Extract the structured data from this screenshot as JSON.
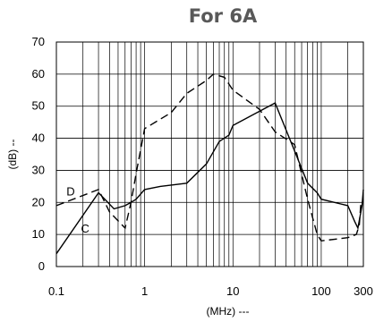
{
  "chart_data": {
    "type": "line",
    "title": "For 6A",
    "xlabel": "(MHz) ---",
    "ylabel": "(dB) --",
    "xscale": "log",
    "xlim": [
      0.1,
      300
    ],
    "ylim": [
      0,
      70
    ],
    "xticks": [
      0.1,
      1,
      10,
      100,
      300
    ],
    "xtick_labels": [
      "0.1",
      "1",
      "10",
      "100",
      "300"
    ],
    "yticks": [
      0,
      10,
      20,
      30,
      40,
      50,
      60,
      70
    ],
    "ytick_labels": [
      "0",
      "10",
      "20",
      "30",
      "40",
      "50",
      "60",
      "70"
    ],
    "grid": true,
    "series": [
      {
        "name": "C",
        "style": "solid",
        "x": [
          0.1,
          0.3,
          0.45,
          0.6,
          0.7,
          0.8,
          1,
          1.5,
          3,
          5,
          7,
          9,
          10,
          30,
          50,
          70,
          90,
          100,
          200,
          240,
          260,
          290,
          300
        ],
        "y": [
          4,
          23,
          18,
          19,
          20,
          21,
          24,
          25,
          26,
          32,
          39,
          41,
          44,
          51,
          36,
          26,
          23,
          21,
          19,
          14,
          12,
          19,
          24
        ]
      },
      {
        "name": "D",
        "style": "dashed",
        "x": [
          0.1,
          0.3,
          0.4,
          0.6,
          0.7,
          0.8,
          1,
          2,
          3,
          5,
          6,
          8,
          10,
          20,
          30,
          50,
          70,
          90,
          100,
          200,
          250,
          270,
          280,
          300
        ],
        "y": [
          19,
          24,
          17,
          12,
          20,
          29,
          43,
          48,
          54,
          58,
          60,
          59,
          55,
          49,
          42,
          38,
          21,
          10,
          8,
          9,
          10,
          13,
          19,
          21
        ]
      }
    ]
  },
  "colors": {
    "background": "#ffffff",
    "grid": "#000000",
    "lines": "#000000",
    "title": "#595959"
  }
}
